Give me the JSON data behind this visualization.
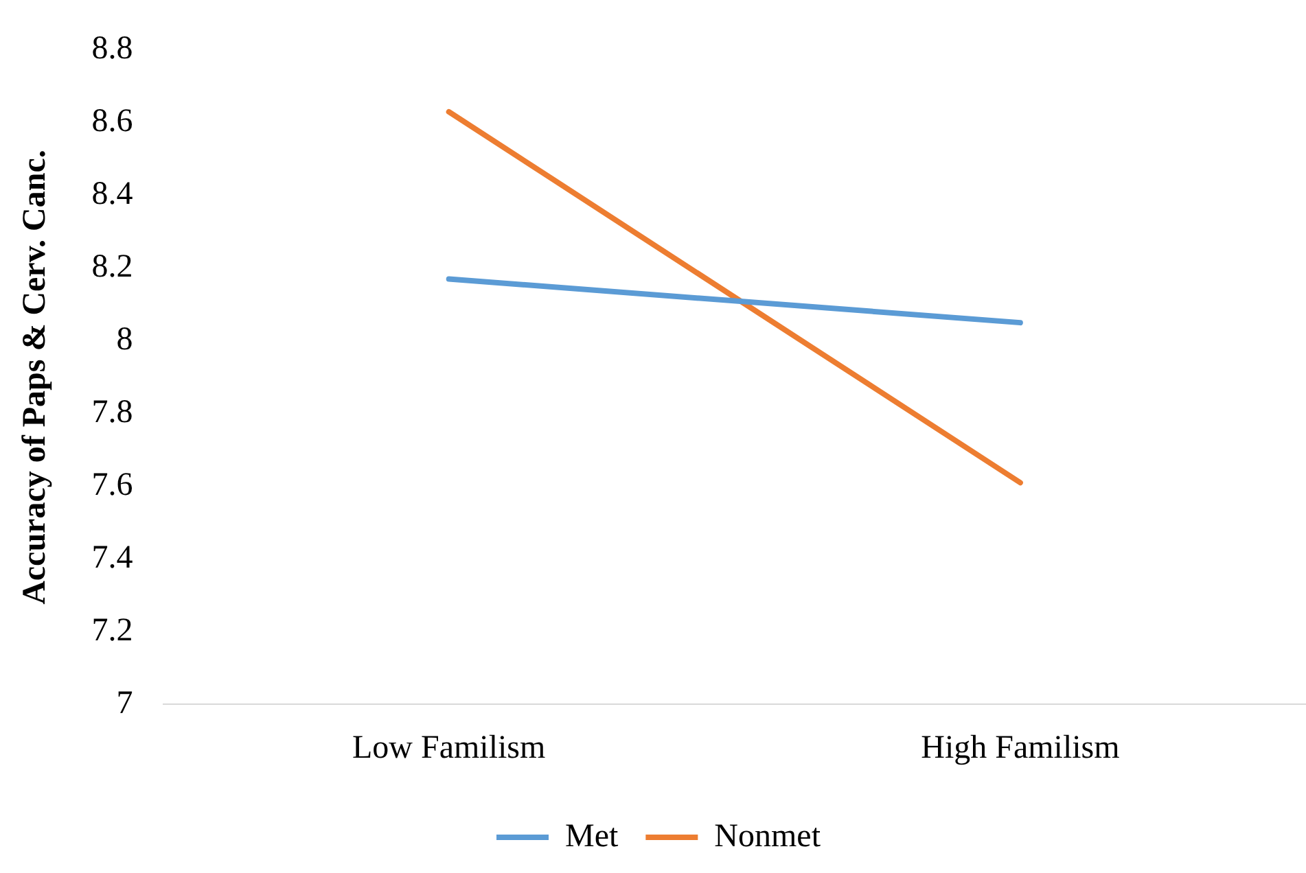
{
  "chart_data": {
    "type": "line",
    "ylabel": "Accuracy of Paps & Cerv. Canc.",
    "categories": [
      "Low Familism",
      "High Familism"
    ],
    "series": [
      {
        "name": "Met",
        "color": "#5b9bd5",
        "values": [
          8.17,
          8.05
        ]
      },
      {
        "name": "Nonmet",
        "color": "#ed7d31",
        "values": [
          8.63,
          7.61
        ]
      }
    ],
    "ylim": [
      7,
      8.8
    ],
    "yticks": [
      7,
      7.2,
      7.4,
      7.6,
      7.8,
      8,
      8.2,
      8.4,
      8.6,
      8.8
    ],
    "grid": false,
    "legend": "bottom",
    "marker": "none",
    "line_style": "solid"
  }
}
